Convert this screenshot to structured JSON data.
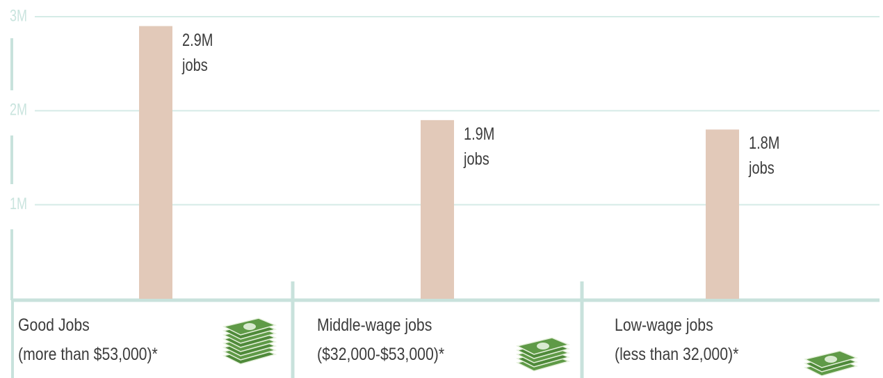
{
  "chart_data": {
    "type": "bar",
    "categories": [
      "Good Jobs",
      "Middle-wage jobs",
      "Low-wage jobs"
    ],
    "category_notes": [
      "(more than $53,000)*",
      "($32,000-$53,000)*",
      "(less than 32,000)*"
    ],
    "values": [
      2900000,
      1900000,
      1800000
    ],
    "value_labels": [
      "2.9M jobs",
      "1.9M jobs",
      "1.8M jobs"
    ],
    "color": "#e2c9b9",
    "ylim": [
      0,
      3000000
    ],
    "yticks": [
      {
        "value": 1000000,
        "label": "1M"
      },
      {
        "value": 2000000,
        "label": "2M"
      },
      {
        "value": 3000000,
        "label": "3M"
      }
    ],
    "grid": true
  }
}
